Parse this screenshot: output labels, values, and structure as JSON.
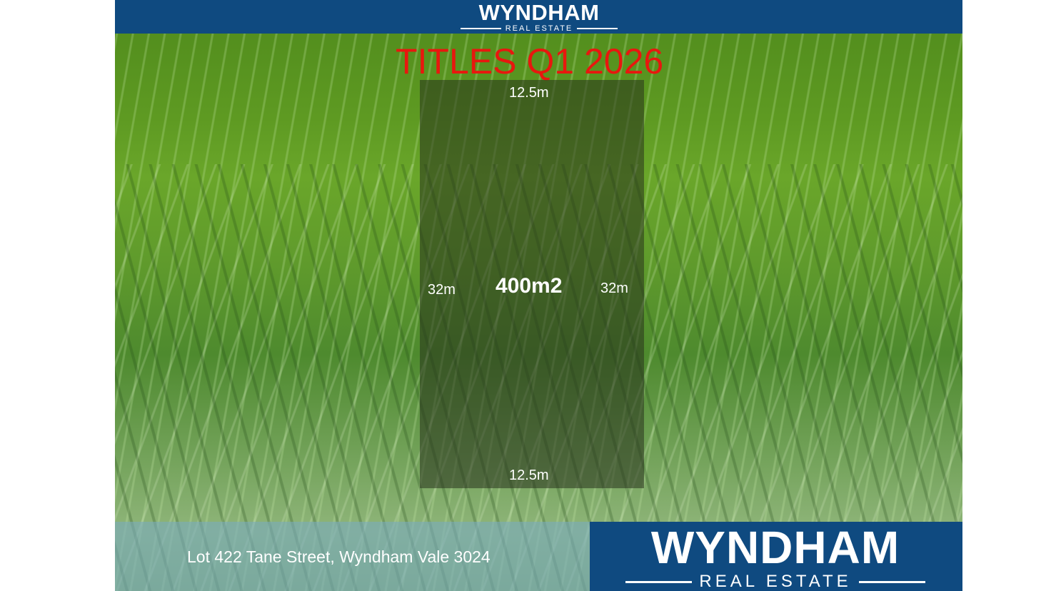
{
  "header": {
    "logo_main": "WYNDHAM",
    "logo_sub": "REAL ESTATE"
  },
  "title": "TITLES Q1 2026",
  "lot": {
    "top": "12.5m",
    "bottom": "12.5m",
    "left": "32m",
    "right": "32m",
    "area": "400m2"
  },
  "footer": {
    "address": "Lot 422 Tane Street, Wyndham Vale 3024",
    "logo_main": "WYNDHAM",
    "logo_sub": "REAL ESTATE"
  },
  "colors": {
    "brand": "#0f4a80",
    "title": "#e8170e"
  }
}
